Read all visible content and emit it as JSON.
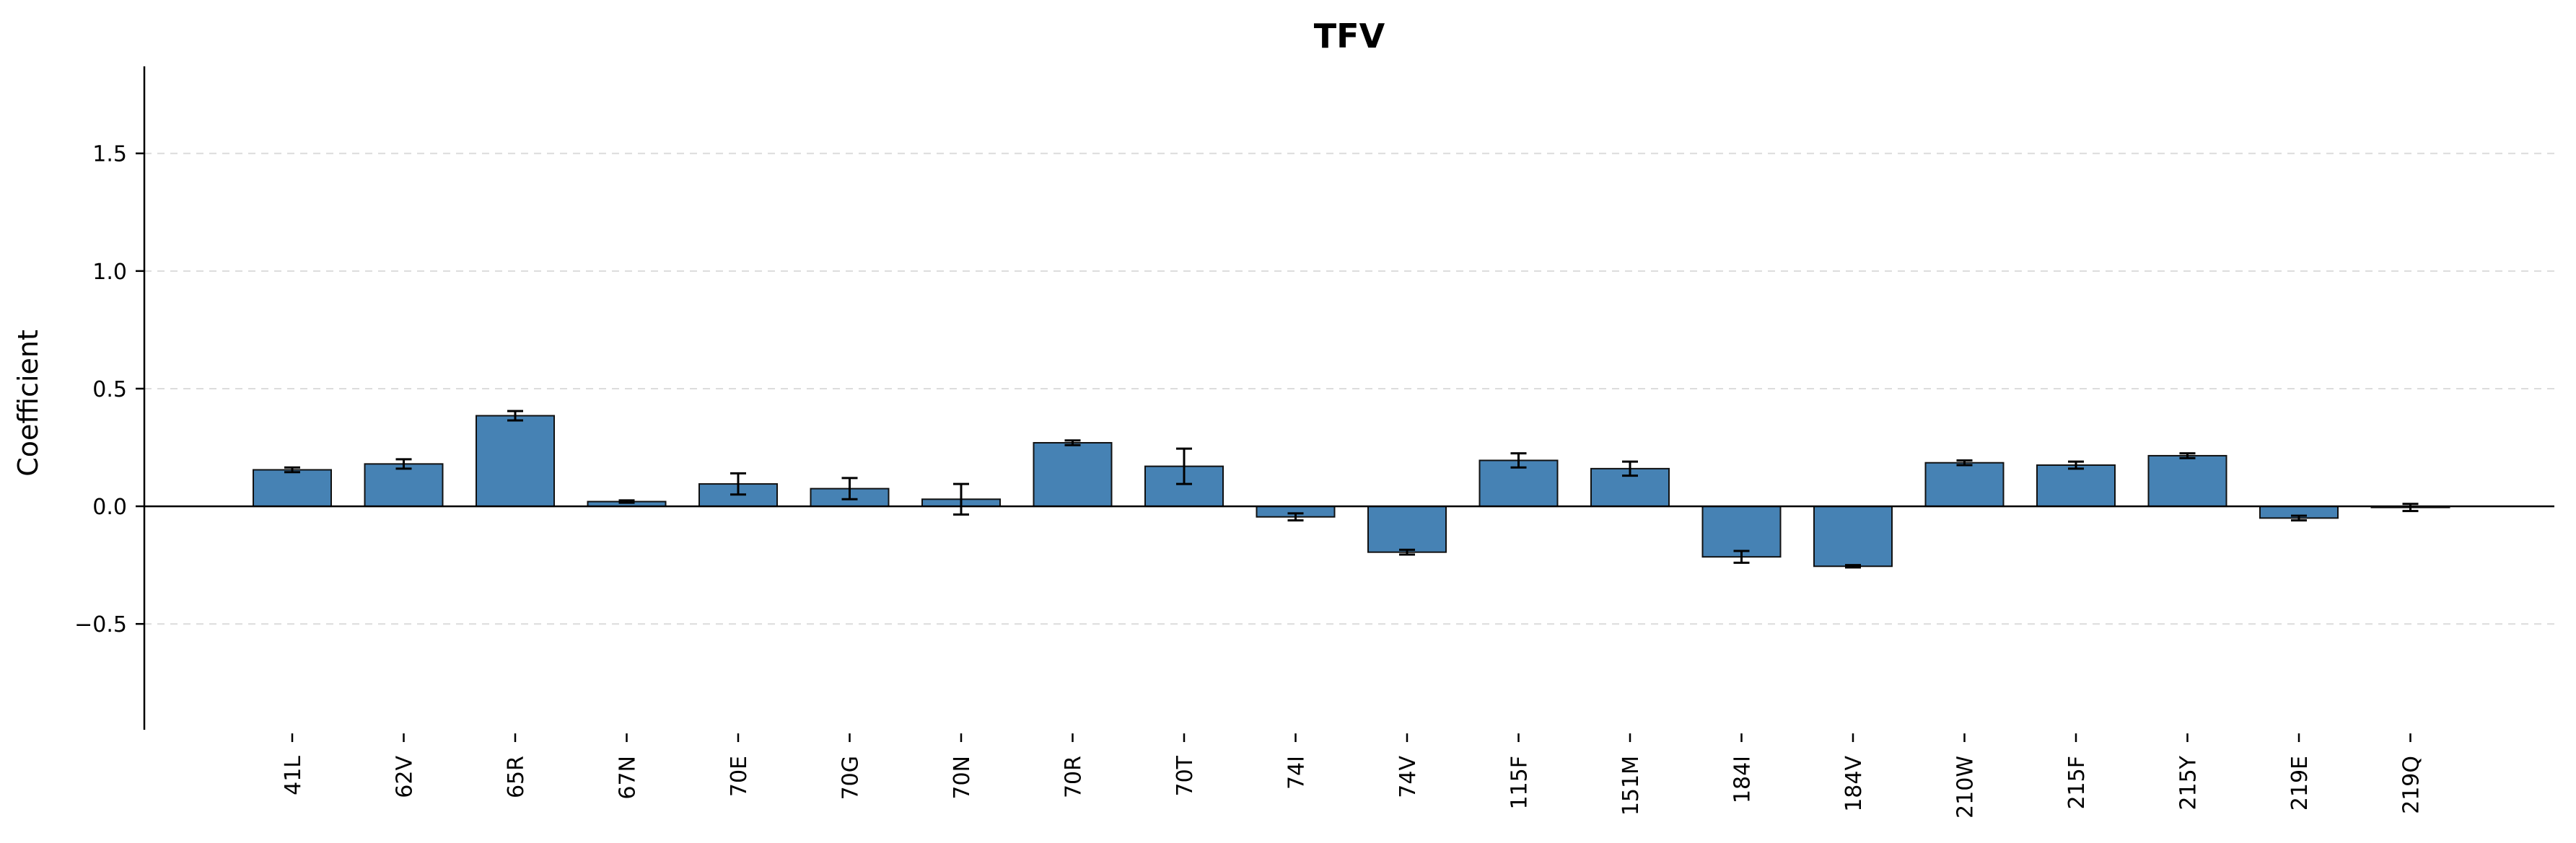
{
  "chart_data": {
    "type": "bar",
    "title": "TFV",
    "ylabel": "Coefficient",
    "xlabel": "",
    "ylim": [
      -0.95,
      1.87
    ],
    "yticks": [
      -0.5,
      0.0,
      0.5,
      1.0,
      1.5
    ],
    "ytick_labels": [
      "−0.5",
      "0.0",
      "0.5",
      "1.0",
      "1.5"
    ],
    "grid": true,
    "bar_color": "#4682b4",
    "categories": [
      "41L",
      "62V",
      "65R",
      "67N",
      "70E",
      "70G",
      "70N",
      "70R",
      "70T",
      "74I",
      "74V",
      "115F",
      "151M",
      "184I",
      "184V",
      "210W",
      "215F",
      "215Y",
      "219E",
      "219Q"
    ],
    "values": [
      0.155,
      0.18,
      0.385,
      0.02,
      0.095,
      0.075,
      0.03,
      0.27,
      0.17,
      -0.045,
      -0.195,
      0.195,
      0.16,
      -0.215,
      -0.255,
      0.185,
      0.175,
      0.215,
      -0.05,
      -0.005
    ],
    "errors": [
      0.01,
      0.02,
      0.02,
      0.005,
      0.045,
      0.045,
      0.065,
      0.01,
      0.075,
      0.015,
      0.01,
      0.03,
      0.03,
      0.025,
      0.005,
      0.01,
      0.015,
      0.01,
      0.01,
      0.015
    ]
  }
}
